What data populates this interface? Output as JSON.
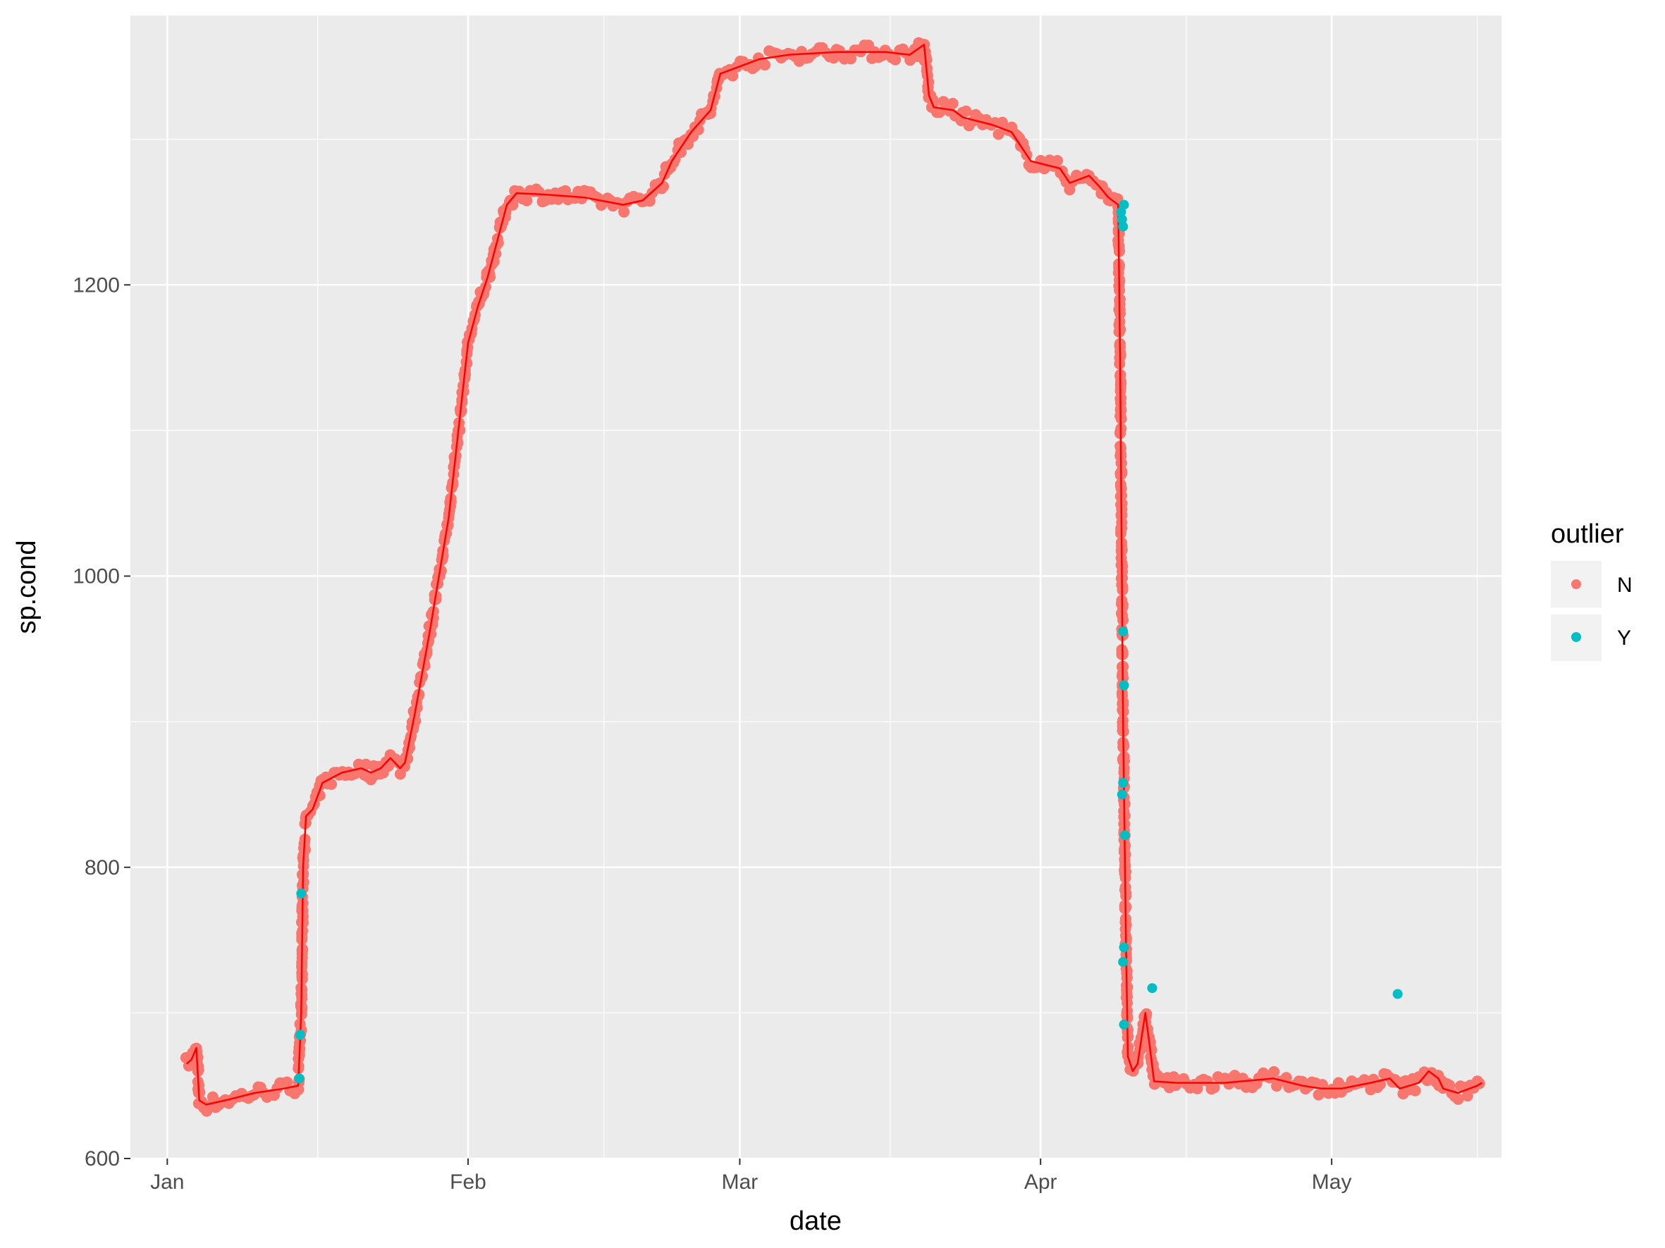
{
  "chart_data": {
    "type": "scatter",
    "xlabel": "date",
    "ylabel": "sp.cond",
    "x_ticks": [
      "Jan",
      "Feb",
      "Mar",
      "Apr",
      "May"
    ],
    "x_tick_days": [
      1,
      32,
      60,
      91,
      121
    ],
    "x_range_days": [
      -2.8,
      138.5
    ],
    "y_ticks": [
      "600",
      "800",
      "1000",
      "1200"
    ],
    "y_tick_values": [
      600,
      800,
      1000,
      1200
    ],
    "ylim": [
      600,
      1385
    ],
    "grid": true,
    "panel_background": "#ebebeb",
    "legend": {
      "title": "outlier",
      "placement": "right",
      "entries": [
        {
          "label": "N",
          "color": "#f8766d"
        },
        {
          "label": "Y",
          "color": "#00bfc4"
        }
      ]
    },
    "line_color": "#ff0000",
    "series_line": [
      [
        3,
        665
      ],
      [
        3.5,
        668
      ],
      [
        4,
        676
      ],
      [
        4.3,
        640
      ],
      [
        5,
        637
      ],
      [
        7,
        640
      ],
      [
        10,
        645
      ],
      [
        13,
        648
      ],
      [
        14.5,
        650
      ],
      [
        14.8,
        700
      ],
      [
        15,
        800
      ],
      [
        15.3,
        835
      ],
      [
        16,
        840
      ],
      [
        17,
        858
      ],
      [
        19,
        865
      ],
      [
        21,
        868
      ],
      [
        22,
        865
      ],
      [
        23,
        868
      ],
      [
        24,
        875
      ],
      [
        25,
        868
      ],
      [
        25.5,
        872
      ],
      [
        26.5,
        905
      ],
      [
        28,
        960
      ],
      [
        30,
        1040
      ],
      [
        31,
        1100
      ],
      [
        32,
        1160
      ],
      [
        33,
        1185
      ],
      [
        34,
        1205
      ],
      [
        35,
        1230
      ],
      [
        36,
        1255
      ],
      [
        37,
        1263
      ],
      [
        40,
        1262
      ],
      [
        44,
        1260
      ],
      [
        48,
        1255
      ],
      [
        50,
        1258
      ],
      [
        52,
        1270
      ],
      [
        53,
        1285
      ],
      [
        55,
        1305
      ],
      [
        57,
        1320
      ],
      [
        58,
        1345
      ],
      [
        60,
        1350
      ],
      [
        62,
        1355
      ],
      [
        65,
        1358
      ],
      [
        70,
        1360
      ],
      [
        75,
        1360
      ],
      [
        77.5,
        1358
      ],
      [
        79,
        1365
      ],
      [
        79.5,
        1330
      ],
      [
        80,
        1322
      ],
      [
        82,
        1320
      ],
      [
        83,
        1315
      ],
      [
        86,
        1310
      ],
      [
        88,
        1305
      ],
      [
        89,
        1295
      ],
      [
        90,
        1285
      ],
      [
        93,
        1280
      ],
      [
        94,
        1270
      ],
      [
        96,
        1275
      ],
      [
        97,
        1268
      ],
      [
        98,
        1260
      ],
      [
        99,
        1255
      ],
      [
        99.2,
        1150
      ],
      [
        99.5,
        900
      ],
      [
        99.8,
        750
      ],
      [
        100,
        670
      ],
      [
        100.5,
        660
      ],
      [
        101,
        665
      ],
      [
        101.8,
        700
      ],
      [
        102.2,
        680
      ],
      [
        102.7,
        653
      ],
      [
        105,
        652
      ],
      [
        110,
        652
      ],
      [
        115,
        655
      ],
      [
        118,
        650
      ],
      [
        120,
        648
      ],
      [
        122,
        648
      ],
      [
        125,
        652
      ],
      [
        127,
        655
      ],
      [
        128,
        648
      ],
      [
        129,
        650
      ],
      [
        130,
        652
      ],
      [
        131,
        660
      ],
      [
        132,
        655
      ],
      [
        132.5,
        648
      ],
      [
        134,
        645
      ],
      [
        136,
        650
      ],
      [
        136.5,
        652
      ]
    ],
    "outliers_Y": [
      [
        14.6,
        655
      ],
      [
        14.7,
        685
      ],
      [
        14.8,
        782
      ],
      [
        99.3,
        1250
      ],
      [
        99.4,
        1245
      ],
      [
        99.5,
        1240
      ],
      [
        99.6,
        1255
      ],
      [
        99.5,
        962
      ],
      [
        99.6,
        925
      ],
      [
        99.5,
        858
      ],
      [
        99.4,
        850
      ],
      [
        99.7,
        822
      ],
      [
        99.6,
        745
      ],
      [
        99.5,
        735
      ],
      [
        99.6,
        692
      ],
      [
        102.5,
        717
      ],
      [
        127.8,
        713
      ]
    ]
  }
}
